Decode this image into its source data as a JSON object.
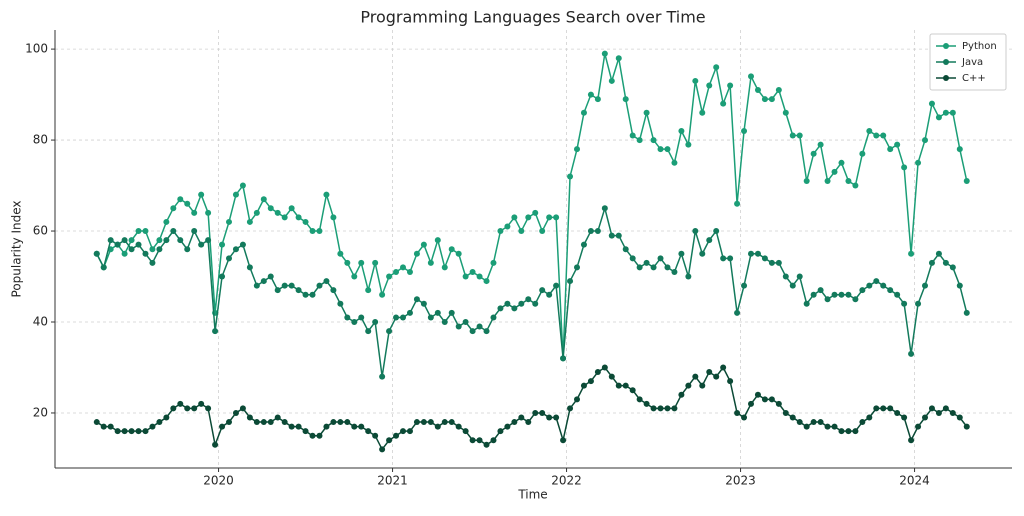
{
  "chart_data": {
    "type": "line",
    "title": "Programming Languages Search over Time",
    "xlabel": "Time",
    "ylabel": "Popularity Index",
    "x": [
      2019.3,
      2019.34,
      2019.38,
      2019.42,
      2019.46,
      2019.5,
      2019.54,
      2019.58,
      2019.62,
      2019.66,
      2019.7,
      2019.74,
      2019.78,
      2019.82,
      2019.86,
      2019.9,
      2019.94,
      2019.98,
      2020.02,
      2020.06,
      2020.1,
      2020.14,
      2020.18,
      2020.22,
      2020.26,
      2020.3,
      2020.34,
      2020.38,
      2020.42,
      2020.46,
      2020.5,
      2020.54,
      2020.58,
      2020.62,
      2020.66,
      2020.7,
      2020.74,
      2020.78,
      2020.82,
      2020.86,
      2020.9,
      2020.94,
      2020.98,
      2021.02,
      2021.06,
      2021.1,
      2021.14,
      2021.18,
      2021.22,
      2021.26,
      2021.3,
      2021.34,
      2021.38,
      2021.42,
      2021.46,
      2021.5,
      2021.54,
      2021.58,
      2021.62,
      2021.66,
      2021.7,
      2021.74,
      2021.78,
      2021.82,
      2021.86,
      2021.9,
      2021.94,
      2021.98,
      2022.02,
      2022.06,
      2022.1,
      2022.14,
      2022.18,
      2022.22,
      2022.26,
      2022.3,
      2022.34,
      2022.38,
      2022.42,
      2022.46,
      2022.5,
      2022.54,
      2022.58,
      2022.62,
      2022.66,
      2022.7,
      2022.74,
      2022.78,
      2022.82,
      2022.86,
      2022.9,
      2022.94,
      2022.98,
      2023.02,
      2023.06,
      2023.1,
      2023.14,
      2023.18,
      2023.22,
      2023.26,
      2023.3,
      2023.34,
      2023.38,
      2023.42,
      2023.46,
      2023.5,
      2023.54,
      2023.58,
      2023.62,
      2023.66,
      2023.7,
      2023.74,
      2023.78,
      2023.82,
      2023.86,
      2023.9,
      2023.94,
      2023.98,
      2024.02,
      2024.06,
      2024.1,
      2024.14,
      2024.18,
      2024.22,
      2024.26,
      2024.3
    ],
    "series": [
      {
        "name": "Python",
        "color": "#1b9e77",
        "values": [
          55,
          52,
          56,
          57,
          55,
          58,
          60,
          60,
          56,
          58,
          62,
          65,
          67,
          66,
          64,
          68,
          64,
          42,
          57,
          62,
          68,
          70,
          62,
          64,
          67,
          65,
          64,
          63,
          65,
          63,
          62,
          60,
          60,
          68,
          63,
          55,
          53,
          50,
          53,
          47,
          53,
          46,
          50,
          51,
          52,
          51,
          55,
          57,
          53,
          58,
          52,
          56,
          55,
          50,
          51,
          50,
          49,
          53,
          60,
          61,
          63,
          60,
          63,
          64,
          60,
          63,
          63,
          32,
          72,
          78,
          86,
          90,
          89,
          99,
          93,
          98,
          89,
          81,
          80,
          86,
          80,
          78,
          78,
          75,
          82,
          79,
          93,
          86,
          92,
          96,
          88,
          92,
          66,
          82,
          94,
          91,
          89,
          89,
          91,
          86,
          81,
          81,
          71,
          77,
          79,
          71,
          73,
          75,
          71,
          70,
          77,
          82,
          81,
          81,
          78,
          79,
          74,
          55,
          75,
          80,
          88,
          85,
          86,
          86,
          78,
          71
        ]
      },
      {
        "name": "Java",
        "color": "#137a5c",
        "values": [
          55,
          52,
          58,
          57,
          58,
          56,
          57,
          55,
          53,
          56,
          58,
          60,
          58,
          56,
          60,
          57,
          58,
          38,
          50,
          54,
          56,
          57,
          52,
          48,
          49,
          50,
          47,
          48,
          48,
          47,
          46,
          46,
          48,
          49,
          47,
          44,
          41,
          40,
          41,
          38,
          40,
          28,
          38,
          41,
          41,
          42,
          45,
          44,
          41,
          42,
          40,
          42,
          39,
          40,
          38,
          39,
          38,
          41,
          43,
          44,
          43,
          44,
          45,
          44,
          47,
          46,
          48,
          32,
          49,
          52,
          57,
          60,
          60,
          65,
          59,
          59,
          56,
          54,
          52,
          53,
          52,
          54,
          52,
          51,
          55,
          50,
          60,
          55,
          58,
          60,
          54,
          54,
          42,
          48,
          55,
          55,
          54,
          53,
          53,
          50,
          48,
          50,
          44,
          46,
          47,
          45,
          46,
          46,
          46,
          45,
          47,
          48,
          49,
          48,
          47,
          46,
          44,
          33,
          44,
          48,
          53,
          55,
          53,
          52,
          48,
          42
        ]
      },
      {
        "name": "C++",
        "color": "#0b4a36",
        "values": [
          18,
          17,
          17,
          16,
          16,
          16,
          16,
          16,
          17,
          18,
          19,
          21,
          22,
          21,
          21,
          22,
          21,
          13,
          17,
          18,
          20,
          21,
          19,
          18,
          18,
          18,
          19,
          18,
          17,
          17,
          16,
          15,
          15,
          17,
          18,
          18,
          18,
          17,
          17,
          16,
          15,
          12,
          14,
          15,
          16,
          16,
          18,
          18,
          18,
          17,
          18,
          18,
          17,
          16,
          14,
          14,
          13,
          14,
          16,
          17,
          18,
          19,
          18,
          20,
          20,
          19,
          19,
          14,
          21,
          23,
          26,
          27,
          29,
          30,
          28,
          26,
          26,
          25,
          23,
          22,
          21,
          21,
          21,
          21,
          24,
          26,
          28,
          26,
          29,
          28,
          30,
          27,
          20,
          19,
          22,
          24,
          23,
          23,
          22,
          20,
          19,
          18,
          17,
          18,
          18,
          17,
          17,
          16,
          16,
          16,
          18,
          19,
          21,
          21,
          21,
          20,
          19,
          14,
          17,
          19,
          21,
          20,
          21,
          20,
          19,
          17
        ]
      }
    ],
    "xlim": [
      2019.06,
      2024.56
    ],
    "xticks": [
      2020,
      2021,
      2022,
      2023,
      2024
    ],
    "ylim": [
      7.9,
      104.2
    ],
    "yticks": [
      20,
      40,
      60,
      80,
      100
    ],
    "grid": true,
    "legend": "upper right"
  }
}
